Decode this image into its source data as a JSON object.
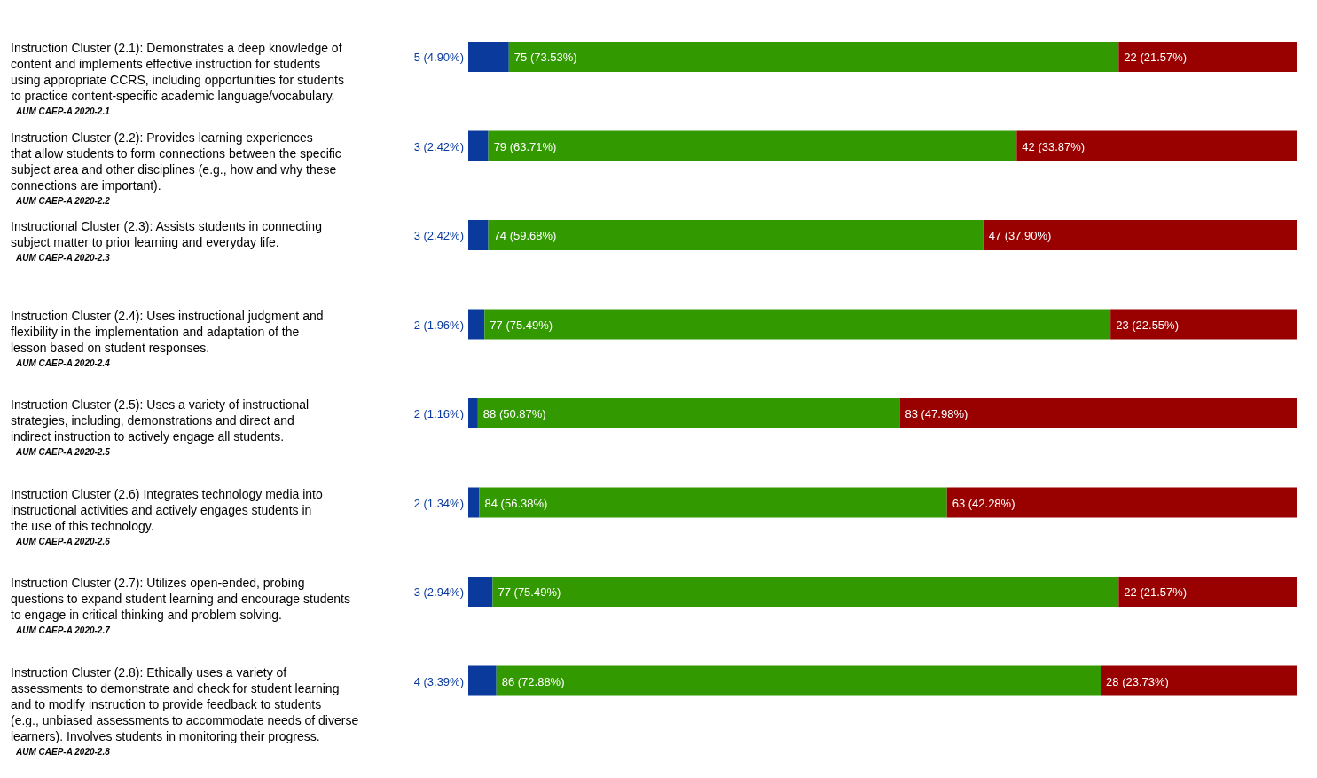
{
  "chart_data": {
    "type": "bar",
    "orientation": "horizontal",
    "stacked": true,
    "tick_labels": "y",
    "xlim": [
      0,
      100
    ],
    "categories": [
      "Instruction Cluster (2.1): Demonstrates a deep knowledge of content and implements effective instruction for students using appropriate CCRS, including opportunities for students to practice content-specific academic language/vocabulary.\nAUM CAEP-A 2020-2.1",
      "Instruction Cluster (2.2): Provides learning experiences that allow students to form connections between the specific subject area and other disciplines (e.g., how and why these connections are important).\nAUM CAEP-A 2020-2.2",
      "Instructional Cluster (2.3): Assists students in connecting subject matter to prior learning and everyday life.\nAUM CAEP-A 2020-2.3",
      "Instruction Cluster (2.4): Uses instructional judgment and flexibility in the implementation and adaptation of the lesson based on student responses.\nAUM CAEP-A 2020-2.4",
      "Instruction Cluster (2.5): Uses a variety of instructional strategies, including, demonstrations and direct and indirect instruction to actively engage all students.\nAUM CAEP-A 2020-2.5",
      "Instruction Cluster (2.6) Integrates technology media into instructional activities and actively engages students in the use of this technology.\nAUM CAEP-A 2020-2.6",
      "Instruction Cluster (2.7): Utilizes open-ended, probing questions to expand student learning and encourage students to engage in critical thinking and problem solving.\nAUM CAEP-A 2020-2.7",
      "Instruction Cluster (2.8): Ethically uses a variety of assessments to demonstrate and check for student learning and to modify instruction to provide feedback to students (e.g., unbiased assessments to accommodate needs of diverse learners). Involves students in monitoring their progress.\nAUM CAEP-A 2020-2.8"
    ],
    "series": [
      {
        "color": "#0a3a9c",
        "values": [
          4.9,
          2.42,
          2.42,
          1.96,
          1.16,
          1.34,
          2.94,
          3.39
        ],
        "value_labels": [
          "5 (4.90%)",
          "3 (2.42%)",
          "3 (2.42%)",
          "2 (1.96%)",
          "2 (1.16%)",
          "2 (1.34%)",
          "3 (2.94%)",
          "4 (3.39%)"
        ]
      },
      {
        "color": "#339900",
        "values": [
          73.53,
          63.71,
          59.68,
          75.49,
          50.87,
          56.38,
          75.49,
          72.88
        ],
        "value_labels": [
          "75 (73.53%)",
          "79 (63.71%)",
          "74 (59.68%)",
          "77 (75.49%)",
          "88 (50.87%)",
          "84 (56.38%)",
          "77 (75.49%)",
          "86 (72.88%)"
        ]
      },
      {
        "color": "#990000",
        "values": [
          21.57,
          33.87,
          37.9,
          22.55,
          47.98,
          42.28,
          21.57,
          23.73
        ],
        "value_labels": [
          "22 (21.57%)",
          "42 (33.87%)",
          "47 (37.90%)",
          "23 (22.55%)",
          "83 (47.98%)",
          "63 (42.28%)",
          "22 (21.57%)",
          "28 (23.73%)"
        ]
      }
    ]
  }
}
